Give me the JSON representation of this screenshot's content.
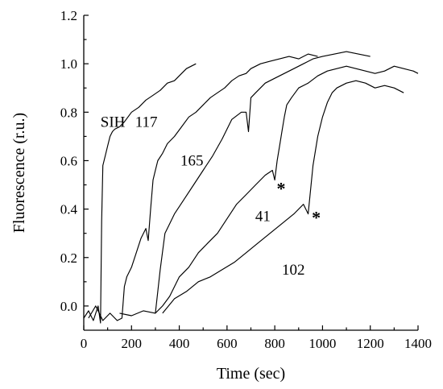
{
  "chart_data": {
    "type": "line",
    "title": "",
    "xlabel": "Time (sec)",
    "ylabel": "Fluorescence (r.u.)",
    "xlim": [
      0,
      1400
    ],
    "ylim": [
      -0.1,
      1.2
    ],
    "xticks": [
      0,
      200,
      400,
      600,
      800,
      1000,
      1200,
      1400
    ],
    "yticks": [
      0.0,
      0.2,
      0.4,
      0.6,
      0.8,
      1.0,
      1.2
    ],
    "xtick_labels": [
      "0",
      "200",
      "400",
      "600",
      "800",
      "1000",
      "1200",
      "1400"
    ],
    "ytick_labels": [
      "0.0",
      "0.2",
      "0.4",
      "0.6",
      "0.8",
      "1.0",
      "1.2"
    ],
    "grid": false,
    "legend": "none",
    "series": [
      {
        "label": "SIH",
        "x": [
          0,
          20,
          40,
          60,
          70,
          75,
          80,
          90,
          100,
          110,
          120,
          130,
          150,
          170,
          200,
          230,
          260,
          290,
          320,
          350,
          380,
          410,
          430,
          450,
          470
        ],
        "y": [
          -0.05,
          -0.02,
          -0.06,
          0.0,
          -0.07,
          0.35,
          0.58,
          0.62,
          0.66,
          0.7,
          0.72,
          0.73,
          0.74,
          0.76,
          0.8,
          0.82,
          0.85,
          0.87,
          0.89,
          0.92,
          0.93,
          0.96,
          0.98,
          0.99,
          1.0
        ]
      },
      {
        "label": "117",
        "x": [
          20,
          50,
          80,
          110,
          140,
          160,
          170,
          180,
          200,
          220,
          240,
          260,
          270,
          280,
          290,
          300,
          310,
          330,
          350,
          380,
          410,
          440,
          470,
          500,
          530,
          560,
          590,
          620,
          650,
          680,
          700,
          740,
          780,
          820,
          860,
          900,
          940,
          980
        ],
        "y": [
          -0.05,
          0.0,
          -0.06,
          -0.03,
          -0.06,
          -0.05,
          0.08,
          0.12,
          0.16,
          0.22,
          0.28,
          0.32,
          0.27,
          0.4,
          0.52,
          0.56,
          0.6,
          0.63,
          0.67,
          0.7,
          0.74,
          0.78,
          0.8,
          0.83,
          0.86,
          0.88,
          0.9,
          0.93,
          0.95,
          0.96,
          0.98,
          1.0,
          1.01,
          1.02,
          1.03,
          1.02,
          1.04,
          1.03
        ]
      },
      {
        "label": "165",
        "x": [
          150,
          200,
          250,
          300,
          320,
          340,
          360,
          380,
          420,
          460,
          500,
          540,
          580,
          620,
          660,
          680,
          690,
          700,
          720,
          760,
          800,
          840,
          880,
          920,
          960,
          1000,
          1050,
          1100,
          1150,
          1200
        ],
        "y": [
          -0.03,
          -0.04,
          -0.02,
          -0.03,
          0.15,
          0.3,
          0.34,
          0.38,
          0.44,
          0.5,
          0.56,
          0.62,
          0.69,
          0.77,
          0.8,
          0.8,
          0.72,
          0.86,
          0.88,
          0.92,
          0.94,
          0.96,
          0.98,
          1.0,
          1.02,
          1.03,
          1.04,
          1.05,
          1.04,
          1.03
        ]
      },
      {
        "label": "41",
        "x": [
          300,
          330,
          360,
          400,
          440,
          480,
          520,
          560,
          600,
          640,
          680,
          720,
          760,
          790,
          800,
          810,
          820,
          830,
          840,
          850,
          870,
          900,
          940,
          980,
          1020,
          1060,
          1100,
          1140,
          1180,
          1220,
          1260,
          1300,
          1340,
          1380,
          1400
        ],
        "y": [
          -0.03,
          0.0,
          0.04,
          0.12,
          0.16,
          0.22,
          0.26,
          0.3,
          0.36,
          0.42,
          0.46,
          0.5,
          0.54,
          0.56,
          0.52,
          0.6,
          0.66,
          0.72,
          0.78,
          0.83,
          0.86,
          0.9,
          0.92,
          0.95,
          0.97,
          0.98,
          0.99,
          0.98,
          0.97,
          0.96,
          0.97,
          0.99,
          0.98,
          0.97,
          0.96
        ]
      },
      {
        "label": "102",
        "x": [
          330,
          380,
          430,
          480,
          530,
          580,
          630,
          680,
          730,
          780,
          830,
          880,
          920,
          940,
          960,
          980,
          1000,
          1020,
          1040,
          1060,
          1100,
          1140,
          1180,
          1220,
          1260,
          1300,
          1340
        ],
        "y": [
          -0.03,
          0.03,
          0.06,
          0.1,
          0.12,
          0.15,
          0.18,
          0.22,
          0.26,
          0.3,
          0.34,
          0.38,
          0.42,
          0.38,
          0.58,
          0.7,
          0.78,
          0.84,
          0.88,
          0.9,
          0.92,
          0.93,
          0.92,
          0.9,
          0.91,
          0.9,
          0.88
        ]
      }
    ],
    "annotations": [
      {
        "text": "SIH",
        "x": 70,
        "y": 0.74
      },
      {
        "text": "117",
        "x": 215,
        "y": 0.74
      },
      {
        "text": "165",
        "x": 405,
        "y": 0.58
      },
      {
        "text": "41",
        "x": 718,
        "y": 0.35
      },
      {
        "text": "102",
        "x": 830,
        "y": 0.13
      },
      {
        "text": "*",
        "x": 808,
        "y": 0.46
      },
      {
        "text": "*",
        "x": 955,
        "y": 0.34
      }
    ]
  }
}
